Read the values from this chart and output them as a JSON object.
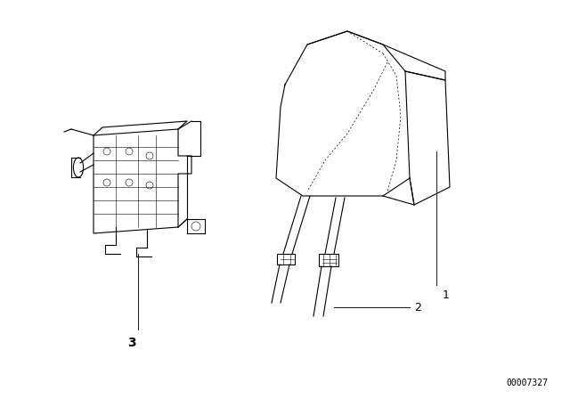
{
  "background_color": "#ffffff",
  "part_number_text": "00007327",
  "line_color": "#000000",
  "text_color": "#000000",
  "lw": 0.8,
  "lw_thin": 0.4
}
